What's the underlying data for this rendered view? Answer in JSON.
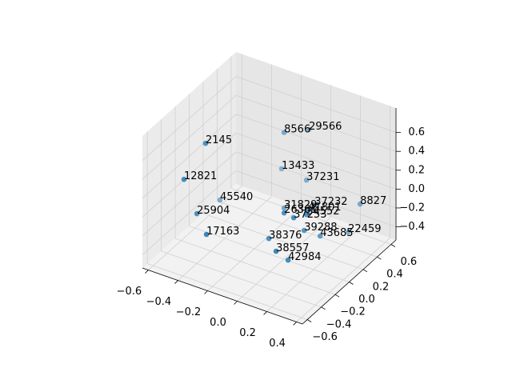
{
  "chart_data": {
    "type": "scatter3d",
    "color": "#1f77b4",
    "grid": true,
    "x": [
      -0.449,
      -0.155,
      -0.035,
      -0.548,
      -0.266,
      -0.051,
      -0.588,
      0.145,
      -0.108,
      0.081,
      0.196,
      0.193,
      0.232,
      0.358,
      -0.508,
      -0.349,
      0.169,
      0.23,
      0.277,
      -0.022,
      0.121,
      0.155
    ],
    "y": [
      -0.17,
      0.33,
      0.43,
      -0.27,
      0.53,
      0.43,
      0.33,
      0.13,
      0.23,
      -0.17,
      -0.07,
      -0.27,
      -0.17,
      0.33,
      -0.17,
      -0.37,
      -0.07,
      0.03,
      0.33,
      -0.17,
      -0.37,
      -0.27
    ],
    "z": [
      0.555,
      0.5,
      0.53,
      0.185,
      -0.08,
      -0.015,
      -0.455,
      0.03,
      -0.21,
      0.108,
      0.131,
      0.185,
      0.174,
      0.022,
      -0.223,
      -0.223,
      -0.096,
      -0.188,
      -0.32,
      -0.22,
      -0.143,
      -0.285
    ],
    "point_labels": [
      "2145",
      "8566",
      "29566",
      "12821",
      "13433",
      "37231",
      "45540",
      "37232",
      "31829",
      "26361",
      "41801",
      "37253",
      "34552",
      "8827",
      "25904",
      "17163",
      "39288",
      "43685",
      "22459",
      "38376",
      "38557",
      "42984"
    ],
    "xlim": [
      -0.64,
      0.44
    ],
    "ylim": [
      -0.67,
      0.67
    ],
    "zlim": [
      -0.54,
      0.86
    ],
    "xticks": [
      {
        "value": -0.6,
        "label": "−0.6"
      },
      {
        "value": -0.4,
        "label": "−0.4"
      },
      {
        "value": -0.2,
        "label": "−0.2"
      },
      {
        "value": 0,
        "label": "0.0"
      },
      {
        "value": 0.2,
        "label": "0.2"
      },
      {
        "value": 0.4,
        "label": "0.4"
      }
    ],
    "yticks": [
      {
        "value": -0.6,
        "label": "−0.6"
      },
      {
        "value": -0.4,
        "label": "−0.4"
      },
      {
        "value": -0.2,
        "label": "−0.2"
      },
      {
        "value": 0,
        "label": "0.0"
      },
      {
        "value": 0.2,
        "label": "0.2"
      },
      {
        "value": 0.4,
        "label": "0.4"
      },
      {
        "value": 0.6,
        "label": "0.6"
      }
    ],
    "zticks": [
      {
        "value": -0.4,
        "label": "−0.4"
      },
      {
        "value": -0.2,
        "label": "−0.2"
      },
      {
        "value": 0,
        "label": "0.0"
      },
      {
        "value": 0.2,
        "label": "0.2"
      },
      {
        "value": 0.4,
        "label": "0.4"
      },
      {
        "value": 0.6,
        "label": "0.6"
      }
    ]
  }
}
